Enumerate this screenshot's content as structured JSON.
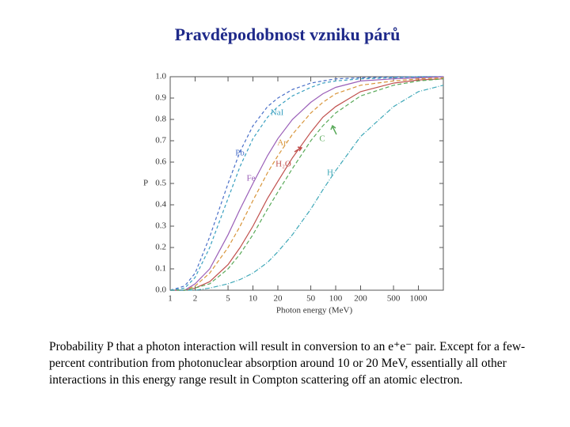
{
  "chart_data": {
    "type": "line",
    "title": "Pravděpodobnost vzniku párů",
    "xlabel": "Photon energy (MeV)",
    "ylabel": "P",
    "log_x": true,
    "x": [
      1,
      1.5,
      2,
      3,
      5,
      7,
      10,
      15,
      20,
      30,
      50,
      70,
      100,
      200,
      500,
      1000,
      2000
    ],
    "xlim": [
      1,
      2000
    ],
    "xticks": [
      1,
      2,
      5,
      10,
      20,
      50,
      100,
      200,
      500,
      1000
    ],
    "ylim": [
      0,
      1
    ],
    "yticks": [
      {
        "value": 0,
        "label": "0.0"
      },
      0.1,
      0.2,
      0.3,
      0.4,
      0.5,
      0.6,
      0.7,
      0.8,
      0.9,
      {
        "value": 1,
        "label": "1.0"
      }
    ],
    "series": [
      {
        "name": "Pb",
        "color": "#4a6fc8",
        "dash": "4,3",
        "values": [
          0,
          0.02,
          0.08,
          0.25,
          0.5,
          0.65,
          0.77,
          0.86,
          0.9,
          0.94,
          0.97,
          0.98,
          0.99,
          0.995,
          0.998,
          1,
          1
        ]
      },
      {
        "name": "NaI",
        "color": "#3aa0c0",
        "dash": "4,3",
        "values": [
          0,
          0.01,
          0.06,
          0.2,
          0.43,
          0.58,
          0.71,
          0.81,
          0.86,
          0.91,
          0.95,
          0.97,
          0.98,
          0.99,
          0.995,
          1,
          1
        ]
      },
      {
        "name": "Fe",
        "color": "#9a5fb8",
        "dash": "",
        "values": [
          0,
          0,
          0.03,
          0.1,
          0.26,
          0.38,
          0.5,
          0.63,
          0.71,
          0.8,
          0.88,
          0.92,
          0.95,
          0.98,
          0.99,
          0.995,
          1
        ]
      },
      {
        "name": "Ar",
        "color": "#d8953a",
        "dash": "5,3",
        "values": [
          0,
          0,
          0.02,
          0.08,
          0.2,
          0.3,
          0.42,
          0.55,
          0.63,
          0.73,
          0.83,
          0.88,
          0.92,
          0.96,
          0.98,
          0.99,
          0.995
        ]
      },
      {
        "name": "H₂O",
        "color": "#c0504d",
        "dash": "",
        "values": [
          0,
          0,
          0.01,
          0.04,
          0.12,
          0.2,
          0.3,
          0.43,
          0.51,
          0.62,
          0.74,
          0.81,
          0.86,
          0.93,
          0.97,
          0.985,
          0.99
        ]
      },
      {
        "name": "C",
        "color": "#5aaa5a",
        "dash": "5,3",
        "values": [
          0,
          0,
          0.01,
          0.03,
          0.1,
          0.17,
          0.26,
          0.38,
          0.46,
          0.57,
          0.7,
          0.77,
          0.83,
          0.91,
          0.96,
          0.98,
          0.99
        ]
      },
      {
        "name": "H",
        "color": "#3fa8b8",
        "dash": "6,2,1,2",
        "values": [
          0,
          0,
          0,
          0.01,
          0.03,
          0.05,
          0.08,
          0.13,
          0.18,
          0.26,
          0.38,
          0.47,
          0.56,
          0.72,
          0.86,
          0.93,
          0.96
        ]
      }
    ],
    "caption": "Probability P that a photon interaction will result in conversion to an e⁺e⁻ pair. Except for a few-percent contribution from photonuclear absorption around 10 or 20 MeV, essentially all other interactions in this energy range result in Compton scattering off an atomic electron."
  }
}
